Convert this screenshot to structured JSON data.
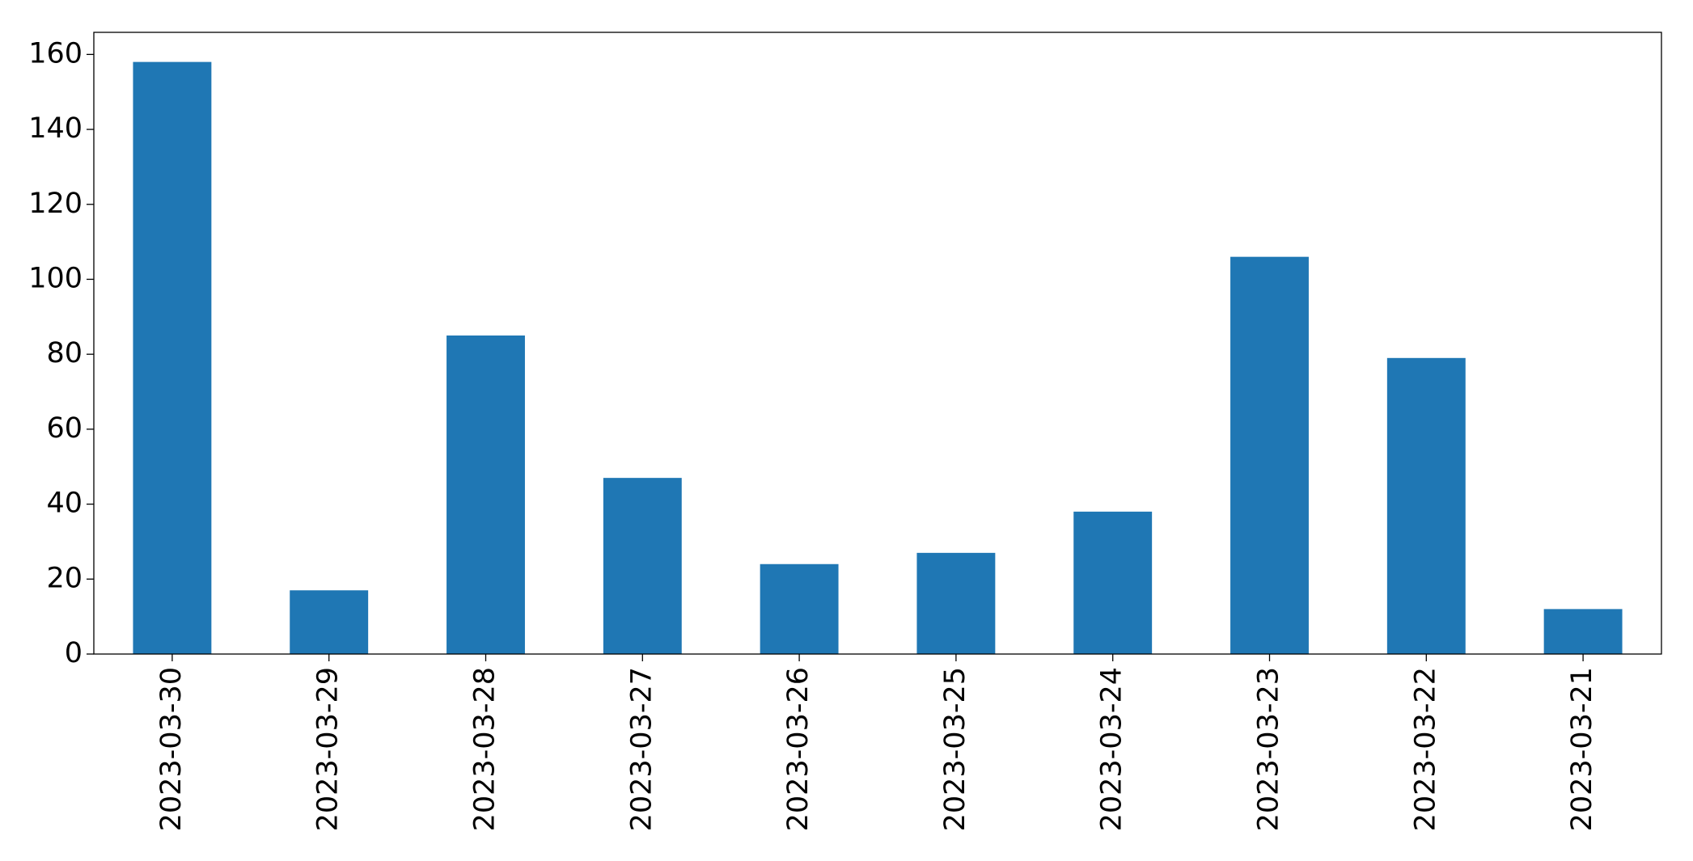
{
  "chart_data": {
    "type": "bar",
    "categories": [
      "2023-03-30",
      "2023-03-29",
      "2023-03-28",
      "2023-03-27",
      "2023-03-26",
      "2023-03-25",
      "2023-03-24",
      "2023-03-23",
      "2023-03-22",
      "2023-03-21"
    ],
    "values": [
      158,
      17,
      85,
      47,
      24,
      27,
      38,
      106,
      79,
      12
    ],
    "color": "#1f77b4",
    "ylim": [
      0,
      165.9
    ],
    "yticks": [
      0,
      20,
      40,
      60,
      80,
      100,
      120,
      140,
      160
    ],
    "grid": false
  }
}
